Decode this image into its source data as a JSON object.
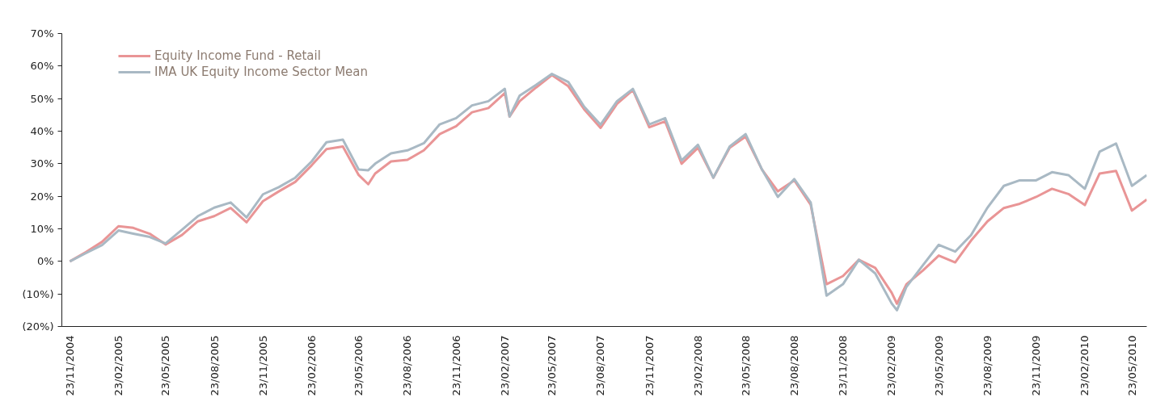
{
  "chart_data": {
    "type": "line",
    "x": [
      "2004-11-23",
      "2004-12-23",
      "2005-01-23",
      "2005-02-23",
      "2005-03-23",
      "2005-04-23",
      "2005-05-23",
      "2005-06-23",
      "2005-07-23",
      "2005-08-23",
      "2005-09-23",
      "2005-10-23",
      "2005-11-23",
      "2005-12-23",
      "2006-01-23",
      "2006-02-23",
      "2006-03-23",
      "2006-04-23",
      "2006-05-23",
      "2006-06-10",
      "2006-06-23",
      "2006-07-23",
      "2006-08-23",
      "2006-09-23",
      "2006-10-23",
      "2006-11-23",
      "2006-12-23",
      "2007-01-23",
      "2007-02-23",
      "2007-03-04",
      "2007-03-23",
      "2007-04-23",
      "2007-05-23",
      "2007-06-23",
      "2007-07-23",
      "2007-08-23",
      "2007-09-23",
      "2007-10-23",
      "2007-11-23",
      "2007-12-23",
      "2008-01-23",
      "2008-02-23",
      "2008-03-23",
      "2008-04-23",
      "2008-05-23",
      "2008-06-23",
      "2008-07-23",
      "2008-08-23",
      "2008-09-23",
      "2008-10-23",
      "2008-11-23",
      "2008-12-23",
      "2009-01-23",
      "2009-02-23",
      "2009-03-05",
      "2009-03-23",
      "2009-04-23",
      "2009-05-23",
      "2009-06-23",
      "2009-07-23",
      "2009-08-23",
      "2009-09-23",
      "2009-10-23",
      "2009-11-23",
      "2009-12-23",
      "2010-01-23",
      "2010-02-23",
      "2010-03-23",
      "2010-04-23",
      "2010-05-23",
      "2010-06-20"
    ],
    "series": [
      {
        "name": "Equity Income Fund - Retail",
        "color": "#e99596",
        "values": [
          0,
          2.8,
          6,
          10.8,
          10.3,
          8.5,
          5.2,
          8.1,
          12.3,
          13.9,
          16.4,
          12,
          18.5,
          21.5,
          24.4,
          29.5,
          34.5,
          35.3,
          26.5,
          23.7,
          27,
          30.7,
          31.2,
          34.1,
          39.1,
          41.5,
          45.8,
          47.1,
          51.7,
          44.5,
          49.2,
          53.4,
          57.2,
          53.8,
          46.7,
          41,
          48.4,
          52.6,
          41.2,
          43,
          30,
          34.9,
          25.7,
          34.9,
          38.3,
          28.2,
          21.5,
          24.9,
          17.4,
          -7,
          -4.5,
          0.5,
          -2,
          -9.6,
          -13,
          -7,
          -2.8,
          1.8,
          -0.3,
          6.4,
          12.3,
          16.4,
          17.7,
          19.8,
          22.3,
          20.7,
          17.3,
          27,
          27.8,
          15.6,
          19
        ]
      },
      {
        "name": "IMA UK Equity Income Sector Mean",
        "color": "#a9b9c4",
        "values": [
          0,
          2.5,
          5,
          9.5,
          8.5,
          7.5,
          5.5,
          9.7,
          13.9,
          16.5,
          18.1,
          13.5,
          20.6,
          22.8,
          25.7,
          30.7,
          36.6,
          37.4,
          28.2,
          28,
          30,
          33.2,
          34.1,
          36.3,
          42.1,
          44,
          47.9,
          49.2,
          53,
          44.5,
          50.9,
          54.2,
          57.6,
          55.1,
          47.5,
          42,
          49.2,
          53,
          42.1,
          44,
          31,
          35.8,
          25.7,
          35.3,
          39.1,
          28.2,
          19.8,
          25.3,
          18.1,
          -10.5,
          -7,
          0.5,
          -3.7,
          -12.9,
          -15,
          -7.8,
          -1.2,
          5.1,
          3,
          8.1,
          16.5,
          23.2,
          24.9,
          24.9,
          27.4,
          26.5,
          22.3,
          33.7,
          36.2,
          23.2,
          26.5
        ]
      }
    ],
    "xlim": [
      "2004-11-08",
      "2010-06-20"
    ],
    "xticks": [
      {
        "value": "2004-11-23",
        "label": "23/11/2004"
      },
      {
        "value": "2005-02-23",
        "label": "23/02/2005"
      },
      {
        "value": "2005-05-23",
        "label": "23/05/2005"
      },
      {
        "value": "2005-08-23",
        "label": "23/08/2005"
      },
      {
        "value": "2005-11-23",
        "label": "23/11/2005"
      },
      {
        "value": "2006-02-23",
        "label": "23/02/2006"
      },
      {
        "value": "2006-05-23",
        "label": "23/05/2006"
      },
      {
        "value": "2006-08-23",
        "label": "23/08/2006"
      },
      {
        "value": "2006-11-23",
        "label": "23/11/2006"
      },
      {
        "value": "2007-02-23",
        "label": "23/02/2007"
      },
      {
        "value": "2007-05-23",
        "label": "23/05/2007"
      },
      {
        "value": "2007-08-23",
        "label": "23/08/2007"
      },
      {
        "value": "2007-11-23",
        "label": "23/11/2007"
      },
      {
        "value": "2008-02-23",
        "label": "23/02/2008"
      },
      {
        "value": "2008-05-23",
        "label": "23/05/2008"
      },
      {
        "value": "2008-08-23",
        "label": "23/08/2008"
      },
      {
        "value": "2008-11-23",
        "label": "23/11/2008"
      },
      {
        "value": "2009-02-23",
        "label": "23/02/2009"
      },
      {
        "value": "2009-05-23",
        "label": "23/05/2009"
      },
      {
        "value": "2009-08-23",
        "label": "23/08/2009"
      },
      {
        "value": "2009-11-23",
        "label": "23/11/2009"
      },
      {
        "value": "2010-02-23",
        "label": "23/02/2010"
      },
      {
        "value": "2010-05-23",
        "label": "23/05/2010"
      }
    ],
    "ylim": [
      -20,
      70
    ],
    "yticks": [
      {
        "value": -20,
        "label": "(20%)"
      },
      {
        "value": -10,
        "label": "(10%)"
      },
      {
        "value": 0,
        "label": "0%"
      },
      {
        "value": 10,
        "label": "10%"
      },
      {
        "value": 20,
        "label": "20%"
      },
      {
        "value": 30,
        "label": "30%"
      },
      {
        "value": 40,
        "label": "40%"
      },
      {
        "value": 50,
        "label": "50%"
      },
      {
        "value": 60,
        "label": "60%"
      },
      {
        "value": 70,
        "label": "70%"
      }
    ],
    "legend": "top left",
    "line_style": "solid"
  }
}
